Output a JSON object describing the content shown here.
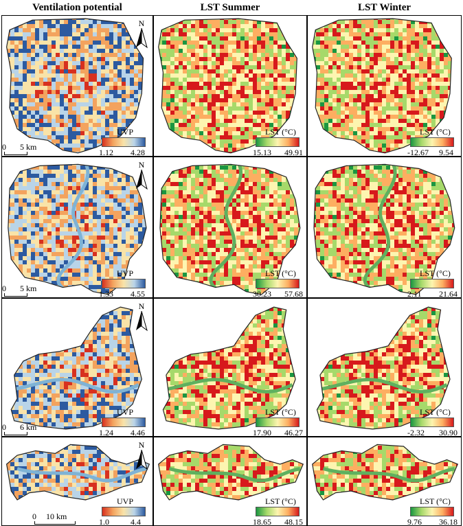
{
  "headers": {
    "col1": "Ventilation potential",
    "col2": "LST Summer",
    "col3": "LST Winter"
  },
  "north_label": "N",
  "colors": {
    "uvp_low": "#d7301f",
    "uvp_mid": "#f9e3a8",
    "uvp_high": "#2c5aa0",
    "lst_low": "#1a9641",
    "lst_mid": "#fdf5b0",
    "lst_high": "#d7191c",
    "river": "#7fb3d5"
  },
  "rows": [
    {
      "scale": {
        "zero": "0",
        "label": "5 km"
      },
      "uvp": {
        "title": "UVP",
        "min": "1.12",
        "max": "4.28"
      },
      "summer": {
        "title": "LST (°C)",
        "min": "15.13",
        "max": "49.91"
      },
      "winter": {
        "title": "LST (°C)",
        "min": "-12.67",
        "max": "9.54"
      }
    },
    {
      "scale": {
        "zero": "0",
        "label": "5 km"
      },
      "uvp": {
        "title": "UVP",
        "min": "1.33",
        "max": "4.55"
      },
      "summer": {
        "title": "LST (°C)",
        "min": "30.23",
        "max": "57.68"
      },
      "winter": {
        "title": "LST (°C)",
        "min": "2.11",
        "max": "21.64"
      }
    },
    {
      "scale": {
        "zero": "0",
        "label": "6 km"
      },
      "uvp": {
        "title": "UVP",
        "min": "1.24",
        "max": "4.46"
      },
      "summer": {
        "title": "LST (°C)",
        "min": "17.90",
        "max": "46.27"
      },
      "winter": {
        "title": "LST (°C)",
        "min": "-2.32",
        "max": "30.90"
      }
    },
    {
      "scale": {
        "zero": "0",
        "label": "10 km"
      },
      "uvp": {
        "title": "UVP",
        "min": "1.0",
        "max": "4.4"
      },
      "summer": {
        "title": "LST (°C)",
        "min": "18.65",
        "max": "48.15"
      },
      "winter": {
        "title": "LST (°C)",
        "min": "9.76",
        "max": "36.18"
      }
    }
  ]
}
